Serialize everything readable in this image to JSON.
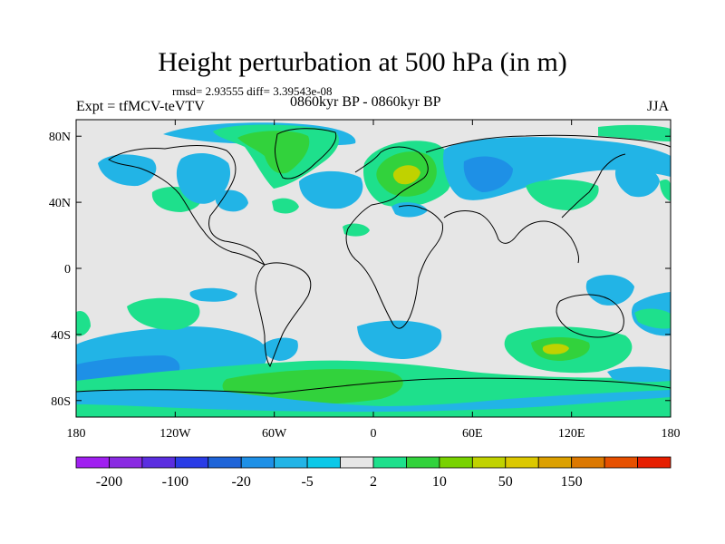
{
  "title": "Height perturbation at 500 hPa (in m)",
  "stats_line": "rmsd= 2.93555 diff= 3.39543e-08",
  "experiment_label": "Expt = tfMCV-teVTV",
  "period_label": "0860kyr BP - 0860kyr BP",
  "season_label": "JJA",
  "map": {
    "projection": "cylindrical-equidistant",
    "lon_range": [
      -180,
      180
    ],
    "lat_range": [
      -90,
      90
    ],
    "lat_ticks": [
      {
        "value": 80,
        "label": "80N"
      },
      {
        "value": 40,
        "label": "40N"
      },
      {
        "value": 0,
        "label": "0"
      },
      {
        "value": -40,
        "label": "40S"
      },
      {
        "value": -80,
        "label": "80S"
      }
    ],
    "lon_ticks": [
      {
        "value": -180,
        "label": "180"
      },
      {
        "value": -120,
        "label": "120W"
      },
      {
        "value": -60,
        "label": "60W"
      },
      {
        "value": 0,
        "label": "0"
      },
      {
        "value": 60,
        "label": "60E"
      },
      {
        "value": 120,
        "label": "120E"
      },
      {
        "value": 180,
        "label": "180"
      }
    ],
    "background_color": "#e6e6e6"
  },
  "colorbar": {
    "colors": [
      "#a020f0",
      "#8a2be2",
      "#5b2ee0",
      "#2a3ce6",
      "#1e64d8",
      "#1e90e6",
      "#22b4e6",
      "#0cc8e8",
      "#e6e6e6",
      "#1ee08c",
      "#32d23c",
      "#78d200",
      "#c0d200",
      "#dcc800",
      "#dca000",
      "#dc7800",
      "#e65000",
      "#e61e00"
    ],
    "tick_labels": [
      {
        "index": 1,
        "label": "-200"
      },
      {
        "index": 3,
        "label": "-100"
      },
      {
        "index": 5,
        "label": "-20"
      },
      {
        "index": 7,
        "label": "-5"
      },
      {
        "index": 9,
        "label": "2"
      },
      {
        "index": 11,
        "label": "10"
      },
      {
        "index": 13,
        "label": "50"
      },
      {
        "index": 15,
        "label": "150"
      }
    ]
  }
}
